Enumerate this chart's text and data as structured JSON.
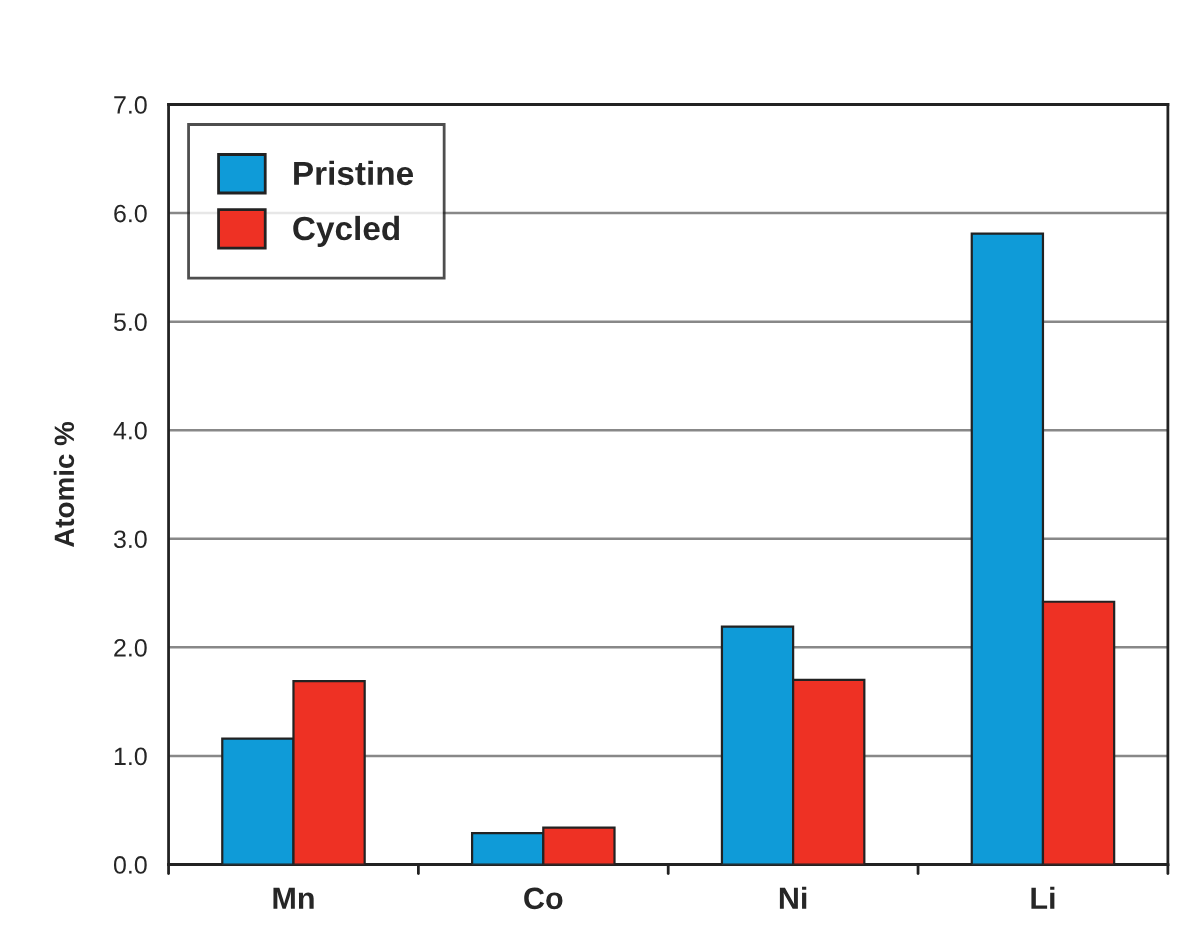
{
  "chart_data": {
    "type": "bar",
    "ylabel": "Atomic %",
    "categories": [
      "Mn",
      "Co",
      "Ni",
      "Li"
    ],
    "series": [
      {
        "name": "Pristine",
        "color": "#0f9bd8",
        "values": [
          1.16,
          0.29,
          2.19,
          5.81
        ]
      },
      {
        "name": "Cycled",
        "color": "#ee3124",
        "values": [
          1.69,
          0.34,
          1.7,
          2.42
        ]
      }
    ],
    "ylim": [
      0,
      7
    ],
    "yticks": [
      {
        "value": 0,
        "label": "0.0"
      },
      {
        "value": 1,
        "label": "1.0"
      },
      {
        "value": 2,
        "label": "2.0"
      },
      {
        "value": 3,
        "label": "3.0"
      },
      {
        "value": 4,
        "label": "4.0"
      },
      {
        "value": 5,
        "label": "5.0"
      },
      {
        "value": 6,
        "label": "6.0"
      },
      {
        "value": 7,
        "label": "7.0"
      }
    ],
    "grid": "y",
    "legend": "top left"
  }
}
